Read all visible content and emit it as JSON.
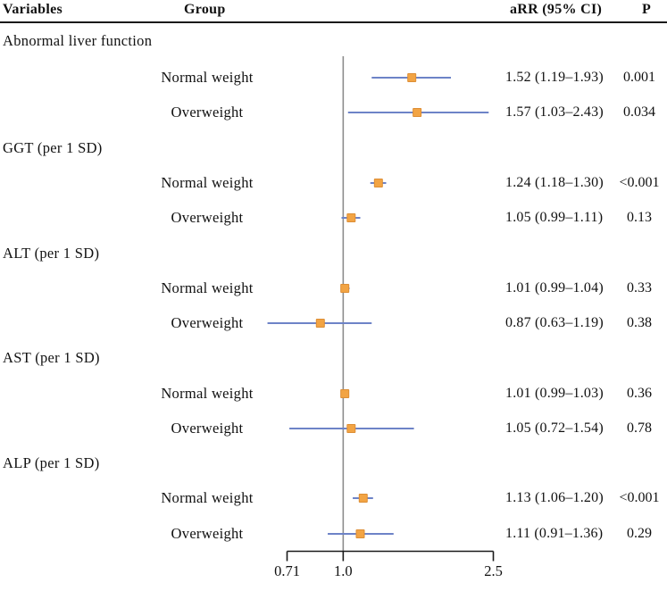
{
  "figure": {
    "header": {
      "variables": "Variables",
      "group": "Group",
      "arr": "aRR (95% CI)",
      "p": "P"
    }
  },
  "colors": {
    "ci_line": "#6d83c7",
    "marker_fill": "#f2a444",
    "marker_stroke": "#dd8e35",
    "reference_line": "#8c8c8c",
    "axis": "#1a1a1a",
    "text": "#111111"
  },
  "chart_data": {
    "type": "forest",
    "x_scale": "log",
    "x_axis": {
      "min": 0.71,
      "max": 2.5,
      "ticks": [
        0.71,
        1.0,
        2.5
      ],
      "tick_labels": [
        "0.71",
        "1.0",
        "2.5"
      ],
      "reference_line": 1.0
    },
    "columns": [
      "Variables",
      "Group",
      "aRR (95% CI)",
      "P"
    ],
    "sections": [
      {
        "label": "Abnormal liver function",
        "rows": [
          {
            "group": "Normal weight",
            "est": 1.52,
            "lo": 1.19,
            "hi": 1.93,
            "arr_text": "1.52 (1.19–1.93)",
            "p": "0.001"
          },
          {
            "group": "Overweight",
            "est": 1.57,
            "lo": 1.03,
            "hi": 2.43,
            "arr_text": "1.57 (1.03–2.43)",
            "p": "0.034"
          }
        ]
      },
      {
        "label": "GGT (per 1 SD)",
        "rows": [
          {
            "group": "Normal weight",
            "est": 1.24,
            "lo": 1.18,
            "hi": 1.3,
            "arr_text": "1.24 (1.18–1.30)",
            "p": "<0.001"
          },
          {
            "group": "Overweight",
            "est": 1.05,
            "lo": 0.99,
            "hi": 1.11,
            "arr_text": "1.05 (0.99–1.11)",
            "p": "0.13"
          }
        ]
      },
      {
        "label": "ALT (per 1 SD)",
        "rows": [
          {
            "group": "Normal weight",
            "est": 1.01,
            "lo": 0.99,
            "hi": 1.04,
            "arr_text": "1.01 (0.99–1.04)",
            "p": "0.33"
          },
          {
            "group": "Overweight",
            "est": 0.87,
            "lo": 0.63,
            "hi": 1.19,
            "arr_text": "0.87 (0.63–1.19)",
            "p": "0.38"
          }
        ]
      },
      {
        "label": "AST (per 1 SD)",
        "rows": [
          {
            "group": "Normal weight",
            "est": 1.01,
            "lo": 0.99,
            "hi": 1.03,
            "arr_text": "1.01 (0.99–1.03)",
            "p": "0.36"
          },
          {
            "group": "Overweight",
            "est": 1.05,
            "lo": 0.72,
            "hi": 1.54,
            "arr_text": "1.05 (0.72–1.54)",
            "p": "0.78"
          }
        ]
      },
      {
        "label": "ALP (per 1 SD)",
        "rows": [
          {
            "group": "Normal weight",
            "est": 1.13,
            "lo": 1.06,
            "hi": 1.2,
            "arr_text": "1.13 (1.06–1.20)",
            "p": "<0.001"
          },
          {
            "group": "Overweight",
            "est": 1.11,
            "lo": 0.91,
            "hi": 1.36,
            "arr_text": "1.11 (0.91–1.36)",
            "p": "0.29"
          }
        ]
      }
    ]
  }
}
